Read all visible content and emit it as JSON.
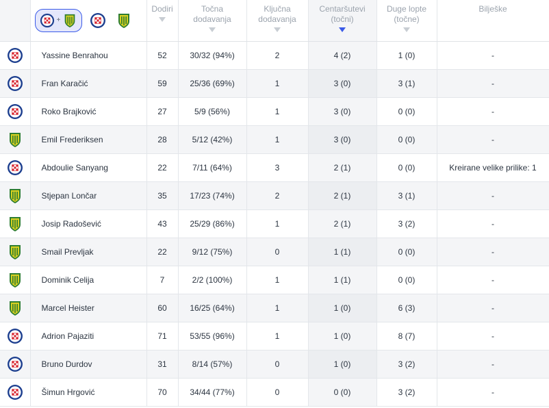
{
  "colors": {
    "hajduk_red": "#d6202a",
    "hajduk_blue": "#1d3f8f",
    "istra_yellow": "#d9d021",
    "istra_green": "#2e7d32",
    "accent": "#3a5ae8"
  },
  "filters": {
    "combined": {
      "icon_left": "hajduk-crest-icon",
      "separator": "+",
      "icon_right": "istra-crest-icon"
    },
    "team_a": {
      "icon": "hajduk-crest-icon"
    },
    "team_b": {
      "icon": "istra-crest-icon"
    }
  },
  "columns": [
    {
      "line1": "Dodiri",
      "line2": "",
      "sorted": false
    },
    {
      "line1": "Točna",
      "line2": "dodavanja",
      "sorted": false
    },
    {
      "line1": "Ključna",
      "line2": "dodavanja",
      "sorted": false
    },
    {
      "line1": "Centaršutevi",
      "line2": "(točni)",
      "sorted": true
    },
    {
      "line1": "Duge lopte",
      "line2": "(točne)",
      "sorted": false
    },
    {
      "line1": "Bilješke",
      "line2": "",
      "sorted": false
    }
  ],
  "rows": [
    {
      "team": "hajduk",
      "name": "Yassine Benrahou",
      "touches": "52",
      "accurate_passes": "30/32 (94%)",
      "key_passes": "2",
      "crosses": "4 (2)",
      "long_balls": "1 (0)",
      "notes": "-"
    },
    {
      "team": "hajduk",
      "name": "Fran Karačić",
      "touches": "59",
      "accurate_passes": "25/36 (69%)",
      "key_passes": "1",
      "crosses": "3 (0)",
      "long_balls": "3 (1)",
      "notes": "-"
    },
    {
      "team": "hajduk",
      "name": "Roko Brajković",
      "touches": "27",
      "accurate_passes": "5/9 (56%)",
      "key_passes": "1",
      "crosses": "3 (0)",
      "long_balls": "0 (0)",
      "notes": "-"
    },
    {
      "team": "istra",
      "name": "Emil Frederiksen",
      "touches": "28",
      "accurate_passes": "5/12 (42%)",
      "key_passes": "1",
      "crosses": "3 (0)",
      "long_balls": "0 (0)",
      "notes": "-"
    },
    {
      "team": "hajduk",
      "name": "Abdoulie Sanyang",
      "touches": "22",
      "accurate_passes": "7/11 (64%)",
      "key_passes": "3",
      "crosses": "2 (1)",
      "long_balls": "0 (0)",
      "notes": "Kreirane velike prilike: 1"
    },
    {
      "team": "istra",
      "name": "Stjepan Lončar",
      "touches": "35",
      "accurate_passes": "17/23 (74%)",
      "key_passes": "2",
      "crosses": "2 (1)",
      "long_balls": "3 (1)",
      "notes": "-"
    },
    {
      "team": "istra",
      "name": "Josip Radošević",
      "touches": "43",
      "accurate_passes": "25/29 (86%)",
      "key_passes": "1",
      "crosses": "2 (1)",
      "long_balls": "3 (2)",
      "notes": "-"
    },
    {
      "team": "istra",
      "name": "Smail Prevljak",
      "touches": "22",
      "accurate_passes": "9/12 (75%)",
      "key_passes": "0",
      "crosses": "1 (1)",
      "long_balls": "0 (0)",
      "notes": "-"
    },
    {
      "team": "istra",
      "name": "Dominik Celija",
      "touches": "7",
      "accurate_passes": "2/2 (100%)",
      "key_passes": "1",
      "crosses": "1 (1)",
      "long_balls": "0 (0)",
      "notes": "-"
    },
    {
      "team": "istra",
      "name": "Marcel Heister",
      "touches": "60",
      "accurate_passes": "16/25 (64%)",
      "key_passes": "1",
      "crosses": "1 (0)",
      "long_balls": "6 (3)",
      "notes": "-"
    },
    {
      "team": "hajduk",
      "name": "Adrion Pajaziti",
      "touches": "71",
      "accurate_passes": "53/55 (96%)",
      "key_passes": "1",
      "crosses": "1 (0)",
      "long_balls": "8 (7)",
      "notes": "-"
    },
    {
      "team": "hajduk",
      "name": "Bruno Durdov",
      "touches": "31",
      "accurate_passes": "8/14 (57%)",
      "key_passes": "0",
      "crosses": "1 (0)",
      "long_balls": "3 (2)",
      "notes": "-"
    },
    {
      "team": "hajduk",
      "name": "Šimun Hrgović",
      "touches": "70",
      "accurate_passes": "34/44 (77%)",
      "key_passes": "0",
      "crosses": "0 (0)",
      "long_balls": "3 (2)",
      "notes": "-"
    }
  ]
}
